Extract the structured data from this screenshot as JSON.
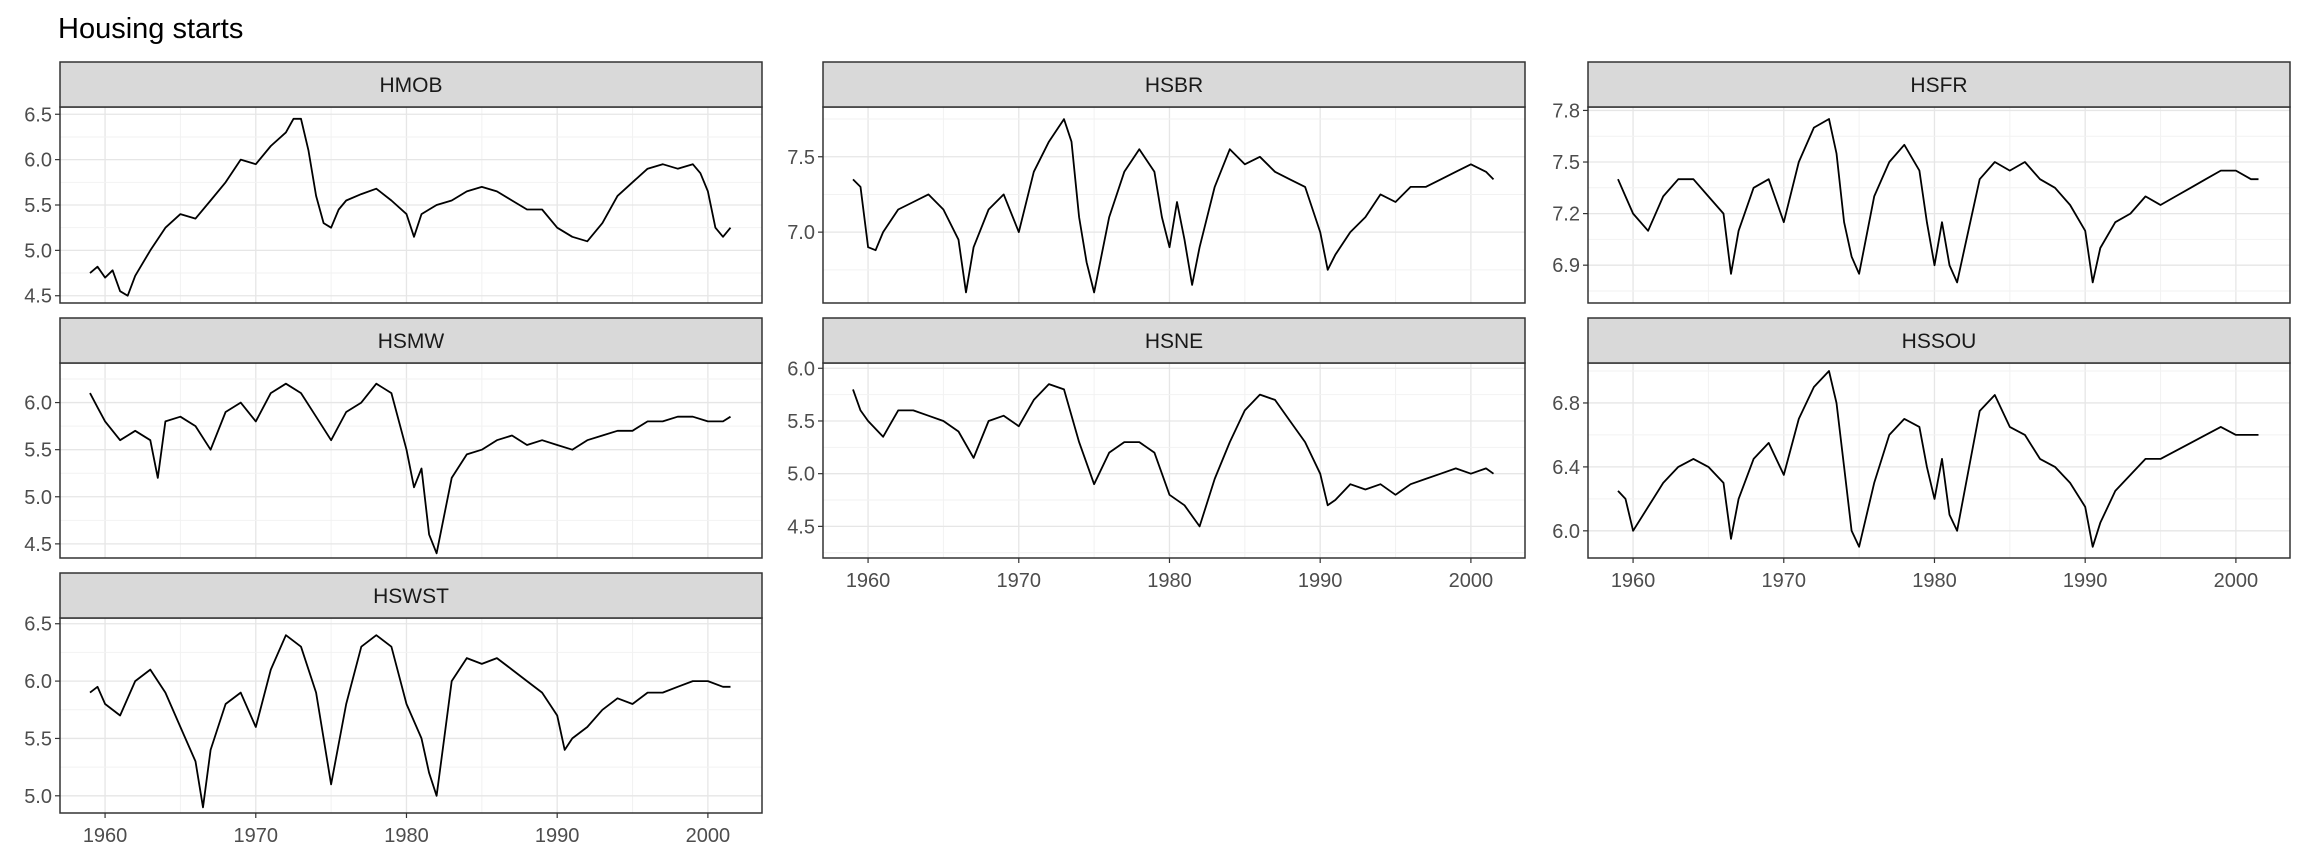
{
  "title": "Housing starts",
  "chart_data": {
    "type": "line",
    "title": "Housing starts",
    "xlabel": "",
    "ylabel": "",
    "x_range": [
      1959,
      2001.6
    ],
    "x_ticks": [
      "1960",
      "1970",
      "1980",
      "1990",
      "2000"
    ],
    "grid": true,
    "panels": [
      {
        "name": "HMOB",
        "ylim": [
          4.42,
          6.58
        ],
        "y_ticks": [
          "4.5",
          "5.0",
          "5.5",
          "6.0",
          "6.5"
        ],
        "x": [
          1959.0,
          1959.5,
          1960.0,
          1960.5,
          1961.0,
          1961.5,
          1962.0,
          1963.0,
          1964.0,
          1965.0,
          1966.0,
          1967.0,
          1968.0,
          1969.0,
          1970.0,
          1971.0,
          1972.0,
          1972.5,
          1973.0,
          1973.5,
          1974.0,
          1974.5,
          1975.0,
          1975.5,
          1976.0,
          1977.0,
          1978.0,
          1979.0,
          1980.0,
          1980.5,
          1981.0,
          1981.5,
          1982.0,
          1983.0,
          1984.0,
          1985.0,
          1986.0,
          1987.0,
          1988.0,
          1989.0,
          1990.0,
          1991.0,
          1992.0,
          1993.0,
          1994.0,
          1995.0,
          1996.0,
          1997.0,
          1998.0,
          1999.0,
          1999.5,
          2000.0,
          2000.5,
          2001.0,
          2001.5
        ],
        "values": [
          4.75,
          4.82,
          4.7,
          4.78,
          4.55,
          4.5,
          4.72,
          5.0,
          5.25,
          5.4,
          5.35,
          5.55,
          5.75,
          6.0,
          5.95,
          6.15,
          6.3,
          6.45,
          6.45,
          6.1,
          5.6,
          5.3,
          5.25,
          5.45,
          5.55,
          5.62,
          5.68,
          5.55,
          5.4,
          5.15,
          5.4,
          5.45,
          5.5,
          5.55,
          5.65,
          5.7,
          5.65,
          5.55,
          5.45,
          5.45,
          5.25,
          5.15,
          5.1,
          5.3,
          5.6,
          5.75,
          5.9,
          5.95,
          5.9,
          5.95,
          5.85,
          5.65,
          5.25,
          5.15,
          5.25
        ]
      },
      {
        "name": "HSBR",
        "ylim": [
          6.53,
          7.83
        ],
        "y_ticks": [
          "7.0",
          "7.5"
        ],
        "x": [
          1959.0,
          1959.5,
          1960.0,
          1960.5,
          1961.0,
          1962.0,
          1963.0,
          1964.0,
          1965.0,
          1966.0,
          1966.5,
          1967.0,
          1968.0,
          1969.0,
          1970.0,
          1971.0,
          1972.0,
          1973.0,
          1973.5,
          1974.0,
          1974.5,
          1975.0,
          1976.0,
          1977.0,
          1978.0,
          1979.0,
          1979.5,
          1980.0,
          1980.5,
          1981.0,
          1981.5,
          1982.0,
          1983.0,
          1984.0,
          1985.0,
          1986.0,
          1987.0,
          1988.0,
          1989.0,
          1990.0,
          1990.5,
          1991.0,
          1992.0,
          1993.0,
          1994.0,
          1995.0,
          1996.0,
          1997.0,
          1998.0,
          1999.0,
          2000.0,
          2001.0,
          2001.5
        ],
        "values": [
          7.35,
          7.3,
          6.9,
          6.88,
          7.0,
          7.15,
          7.2,
          7.25,
          7.15,
          6.95,
          6.6,
          6.9,
          7.15,
          7.25,
          7.0,
          7.4,
          7.6,
          7.75,
          7.6,
          7.1,
          6.8,
          6.6,
          7.1,
          7.4,
          7.55,
          7.4,
          7.1,
          6.9,
          7.2,
          6.95,
          6.65,
          6.9,
          7.3,
          7.55,
          7.45,
          7.5,
          7.4,
          7.35,
          7.3,
          7.0,
          6.75,
          6.85,
          7.0,
          7.1,
          7.25,
          7.2,
          7.3,
          7.3,
          7.35,
          7.4,
          7.45,
          7.4,
          7.35
        ]
      },
      {
        "name": "HSFR",
        "ylim": [
          6.68,
          7.82
        ],
        "y_ticks": [
          "6.9",
          "7.2",
          "7.5",
          "7.8"
        ],
        "x": [
          1959.0,
          1959.5,
          1960.0,
          1961.0,
          1962.0,
          1963.0,
          1964.0,
          1965.0,
          1966.0,
          1966.5,
          1967.0,
          1968.0,
          1969.0,
          1970.0,
          1971.0,
          1972.0,
          1973.0,
          1973.5,
          1974.0,
          1974.5,
          1975.0,
          1976.0,
          1977.0,
          1978.0,
          1979.0,
          1979.5,
          1980.0,
          1980.5,
          1981.0,
          1981.5,
          1982.0,
          1983.0,
          1984.0,
          1985.0,
          1986.0,
          1987.0,
          1988.0,
          1989.0,
          1990.0,
          1990.5,
          1991.0,
          1992.0,
          1993.0,
          1994.0,
          1995.0,
          1996.0,
          1997.0,
          1998.0,
          1999.0,
          2000.0,
          2001.0,
          2001.5
        ],
        "values": [
          7.4,
          7.3,
          7.2,
          7.1,
          7.3,
          7.4,
          7.4,
          7.3,
          7.2,
          6.85,
          7.1,
          7.35,
          7.4,
          7.15,
          7.5,
          7.7,
          7.75,
          7.55,
          7.15,
          6.95,
          6.85,
          7.3,
          7.5,
          7.6,
          7.45,
          7.15,
          6.9,
          7.15,
          6.9,
          6.8,
          7.0,
          7.4,
          7.5,
          7.45,
          7.5,
          7.4,
          7.35,
          7.25,
          7.1,
          6.8,
          7.0,
          7.15,
          7.2,
          7.3,
          7.25,
          7.3,
          7.35,
          7.4,
          7.45,
          7.45,
          7.4,
          7.4
        ]
      },
      {
        "name": "HSMW",
        "ylim": [
          4.35,
          6.42
        ],
        "y_ticks": [
          "4.5",
          "5.0",
          "5.5",
          "6.0"
        ],
        "x": [
          1959.0,
          1959.5,
          1960.0,
          1961.0,
          1962.0,
          1963.0,
          1963.5,
          1964.0,
          1965.0,
          1966.0,
          1967.0,
          1968.0,
          1969.0,
          1970.0,
          1971.0,
          1972.0,
          1973.0,
          1974.0,
          1975.0,
          1976.0,
          1977.0,
          1978.0,
          1979.0,
          1980.0,
          1980.5,
          1981.0,
          1981.5,
          1982.0,
          1983.0,
          1984.0,
          1985.0,
          1986.0,
          1987.0,
          1988.0,
          1989.0,
          1990.0,
          1991.0,
          1992.0,
          1993.0,
          1994.0,
          1995.0,
          1996.0,
          1997.0,
          1998.0,
          1999.0,
          2000.0,
          2001.0,
          2001.5
        ],
        "values": [
          6.1,
          5.95,
          5.8,
          5.6,
          5.7,
          5.6,
          5.2,
          5.8,
          5.85,
          5.75,
          5.5,
          5.9,
          6.0,
          5.8,
          6.1,
          6.2,
          6.1,
          5.85,
          5.6,
          5.9,
          6.0,
          6.2,
          6.1,
          5.5,
          5.1,
          5.3,
          4.6,
          4.4,
          5.2,
          5.45,
          5.5,
          5.6,
          5.65,
          5.55,
          5.6,
          5.55,
          5.5,
          5.6,
          5.65,
          5.7,
          5.7,
          5.8,
          5.8,
          5.85,
          5.85,
          5.8,
          5.8,
          5.85
        ]
      },
      {
        "name": "HSNE",
        "ylim": [
          4.2,
          6.05
        ],
        "y_ticks": [
          "4.5",
          "5.0",
          "5.5",
          "6.0"
        ],
        "x": [
          1959.0,
          1959.5,
          1960.0,
          1961.0,
          1962.0,
          1963.0,
          1964.0,
          1965.0,
          1966.0,
          1967.0,
          1968.0,
          1969.0,
          1970.0,
          1971.0,
          1972.0,
          1973.0,
          1974.0,
          1975.0,
          1976.0,
          1977.0,
          1978.0,
          1979.0,
          1980.0,
          1981.0,
          1982.0,
          1983.0,
          1984.0,
          1985.0,
          1986.0,
          1987.0,
          1988.0,
          1989.0,
          1990.0,
          1990.5,
          1991.0,
          1992.0,
          1993.0,
          1994.0,
          1995.0,
          1996.0,
          1997.0,
          1998.0,
          1999.0,
          2000.0,
          2001.0,
          2001.5
        ],
        "values": [
          5.8,
          5.6,
          5.5,
          5.35,
          5.6,
          5.6,
          5.55,
          5.5,
          5.4,
          5.15,
          5.5,
          5.55,
          5.45,
          5.7,
          5.85,
          5.8,
          5.3,
          4.9,
          5.2,
          5.3,
          5.3,
          5.2,
          4.8,
          4.7,
          4.5,
          4.95,
          5.3,
          5.6,
          5.75,
          5.7,
          5.5,
          5.3,
          5.0,
          4.7,
          4.75,
          4.9,
          4.85,
          4.9,
          4.8,
          4.9,
          4.95,
          5.0,
          5.05,
          5.0,
          5.05,
          5.0
        ]
      },
      {
        "name": "HSSOU",
        "ylim": [
          5.83,
          7.05
        ],
        "y_ticks": [
          "6.0",
          "6.4",
          "6.8"
        ],
        "x": [
          1959.0,
          1959.5,
          1960.0,
          1961.0,
          1962.0,
          1963.0,
          1964.0,
          1965.0,
          1966.0,
          1966.5,
          1967.0,
          1968.0,
          1969.0,
          1970.0,
          1971.0,
          1972.0,
          1973.0,
          1973.5,
          1974.0,
          1974.5,
          1975.0,
          1976.0,
          1977.0,
          1978.0,
          1979.0,
          1979.5,
          1980.0,
          1980.5,
          1981.0,
          1981.5,
          1982.0,
          1983.0,
          1984.0,
          1985.0,
          1986.0,
          1987.0,
          1988.0,
          1989.0,
          1990.0,
          1990.5,
          1991.0,
          1992.0,
          1993.0,
          1994.0,
          1995.0,
          1996.0,
          1997.0,
          1998.0,
          1999.0,
          2000.0,
          2001.0,
          2001.5
        ],
        "values": [
          6.25,
          6.2,
          6.0,
          6.15,
          6.3,
          6.4,
          6.45,
          6.4,
          6.3,
          5.95,
          6.2,
          6.45,
          6.55,
          6.35,
          6.7,
          6.9,
          7.0,
          6.8,
          6.4,
          6.0,
          5.9,
          6.3,
          6.6,
          6.7,
          6.65,
          6.4,
          6.2,
          6.45,
          6.1,
          6.0,
          6.25,
          6.75,
          6.85,
          6.65,
          6.6,
          6.45,
          6.4,
          6.3,
          6.15,
          5.9,
          6.05,
          6.25,
          6.35,
          6.45,
          6.45,
          6.5,
          6.55,
          6.6,
          6.65,
          6.6,
          6.6,
          6.6
        ]
      },
      {
        "name": "HSWST",
        "ylim": [
          4.85,
          6.55
        ],
        "y_ticks": [
          "5.0",
          "5.5",
          "6.0",
          "6.5"
        ],
        "x": [
          1959.0,
          1959.5,
          1960.0,
          1961.0,
          1962.0,
          1963.0,
          1964.0,
          1965.0,
          1966.0,
          1966.5,
          1967.0,
          1968.0,
          1969.0,
          1970.0,
          1971.0,
          1972.0,
          1973.0,
          1974.0,
          1974.5,
          1975.0,
          1976.0,
          1977.0,
          1978.0,
          1979.0,
          1980.0,
          1981.0,
          1981.5,
          1982.0,
          1982.5,
          1983.0,
          1984.0,
          1985.0,
          1986.0,
          1987.0,
          1988.0,
          1989.0,
          1990.0,
          1990.5,
          1991.0,
          1992.0,
          1993.0,
          1994.0,
          1995.0,
          1996.0,
          1997.0,
          1998.0,
          1999.0,
          2000.0,
          2001.0,
          2001.5
        ],
        "values": [
          5.9,
          5.95,
          5.8,
          5.7,
          6.0,
          6.1,
          5.9,
          5.6,
          5.3,
          4.9,
          5.4,
          5.8,
          5.9,
          5.6,
          6.1,
          6.4,
          6.3,
          5.9,
          5.5,
          5.1,
          5.8,
          6.3,
          6.4,
          6.3,
          5.8,
          5.5,
          5.2,
          5.0,
          5.5,
          6.0,
          6.2,
          6.15,
          6.2,
          6.1,
          6.0,
          5.9,
          5.7,
          5.4,
          5.5,
          5.6,
          5.75,
          5.85,
          5.8,
          5.9,
          5.9,
          5.95,
          6.0,
          6.0,
          5.95,
          5.95
        ]
      }
    ]
  }
}
